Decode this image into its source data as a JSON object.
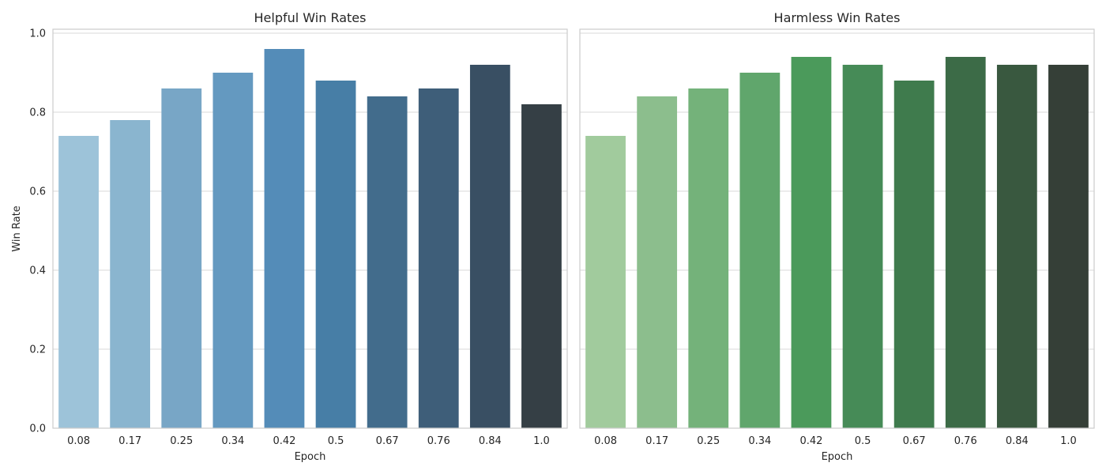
{
  "chart_data": [
    {
      "type": "bar",
      "title": "Helpful Win Rates",
      "xlabel": "Epoch",
      "ylabel": "Win Rate",
      "categories": [
        "0.08",
        "0.17",
        "0.25",
        "0.34",
        "0.42",
        "0.5",
        "0.67",
        "0.76",
        "0.84",
        "1.0"
      ],
      "values": [
        0.74,
        0.78,
        0.86,
        0.9,
        0.96,
        0.88,
        0.84,
        0.86,
        0.92,
        0.82
      ],
      "colors": [
        "#9dc3d9",
        "#8ab5cf",
        "#78a6c6",
        "#6499c0",
        "#548cb8",
        "#477ea6",
        "#426c8c",
        "#3e5e79",
        "#394f63",
        "#353f45"
      ],
      "ylim": [
        0,
        1.01
      ],
      "yticks": [
        0.0,
        0.2,
        0.4,
        0.6,
        0.8,
        1.0
      ],
      "ytick_labels": [
        "0.0",
        "0.2",
        "0.4",
        "0.6",
        "0.8",
        "1.0"
      ],
      "grid": true
    },
    {
      "type": "bar",
      "title": "Harmless Win Rates",
      "xlabel": "Epoch",
      "ylabel": "",
      "categories": [
        "0.08",
        "0.17",
        "0.25",
        "0.34",
        "0.42",
        "0.5",
        "0.67",
        "0.76",
        "0.84",
        "1.0"
      ],
      "values": [
        0.74,
        0.84,
        0.86,
        0.9,
        0.94,
        0.92,
        0.88,
        0.94,
        0.92,
        0.92
      ],
      "colors": [
        "#a1cb9d",
        "#8cbe8d",
        "#74b27a",
        "#60a66c",
        "#4b9a5b",
        "#468b57",
        "#3f7b4d",
        "#3c6b47",
        "#39583f",
        "#353f37"
      ],
      "ylim": [
        0,
        1.01
      ],
      "yticks": [
        0.0,
        0.2,
        0.4,
        0.6,
        0.8,
        1.0
      ],
      "ytick_labels": [
        "",
        "",
        "",
        "",
        "",
        ""
      ],
      "grid": true
    }
  ]
}
